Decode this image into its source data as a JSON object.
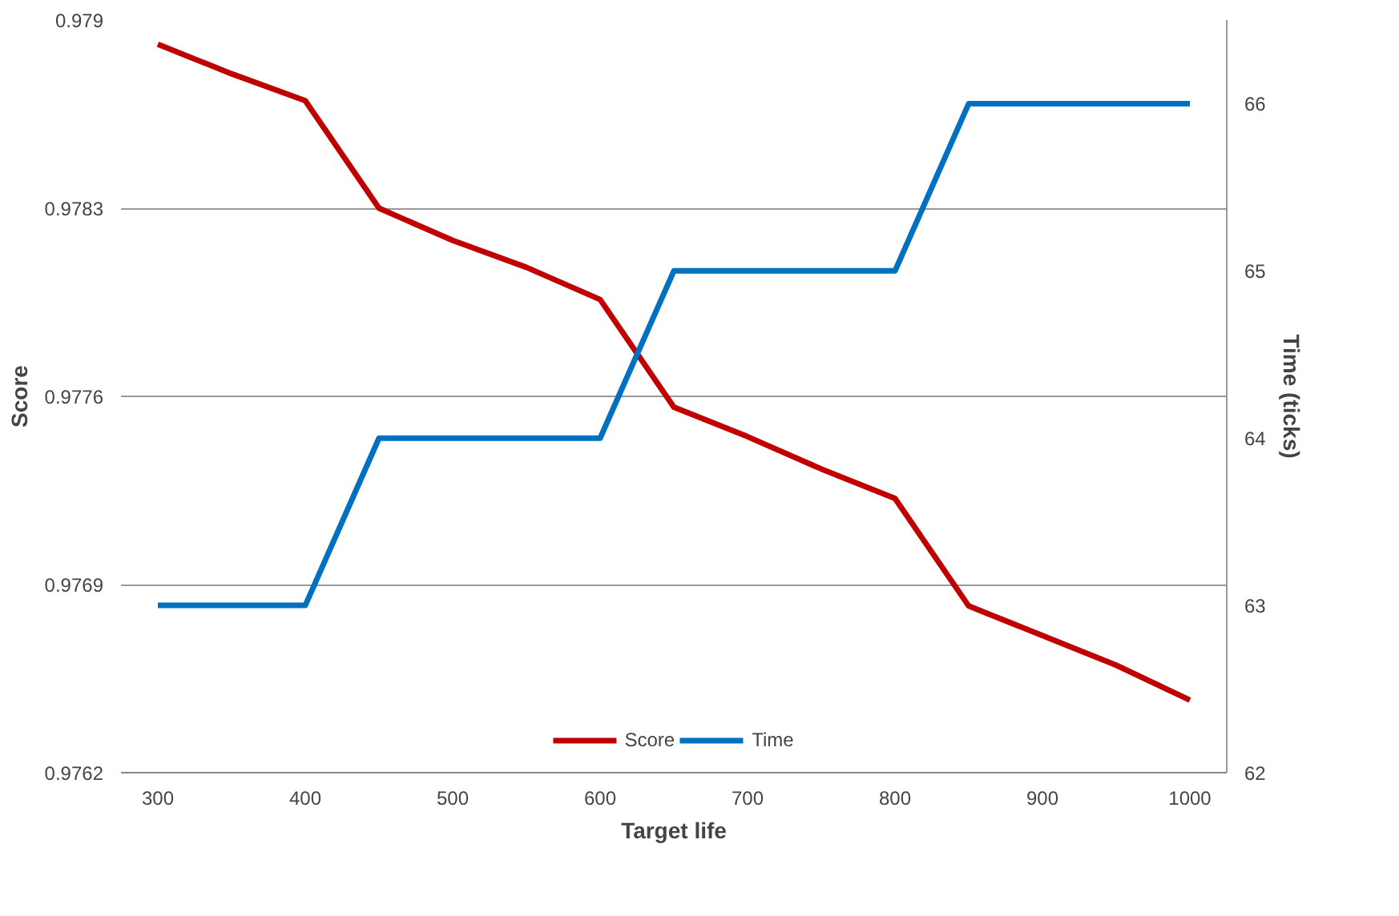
{
  "chart_data": {
    "type": "line",
    "xlabel": "Target life",
    "ylabel": "Score",
    "y2label": "Time (ticks)",
    "x": [
      300,
      350,
      400,
      450,
      500,
      550,
      600,
      650,
      700,
      750,
      800,
      850,
      900,
      950,
      1000
    ],
    "series": [
      {
        "name": "Score",
        "color": "#c00000",
        "values": [
          0.97891,
          0.9788,
          0.9787,
          0.9783,
          0.97818,
          0.97808,
          0.97796,
          0.97756,
          0.97745,
          0.97733,
          0.97722,
          0.97682,
          0.97671,
          0.9766,
          0.97647
        ]
      },
      {
        "name": "Time",
        "color": "#0070c0",
        "axis": "y2",
        "values": [
          63,
          63,
          63,
          64,
          64,
          64,
          64,
          65,
          65,
          65,
          65,
          66,
          66,
          66,
          66
        ]
      }
    ],
    "xlim": [
      275,
      1025
    ],
    "xticks": [
      300,
      400,
      500,
      600,
      700,
      800,
      900,
      1000
    ],
    "ylim": [
      0.9762,
      0.979
    ],
    "yticks": [
      0.9762,
      0.9769,
      0.9776,
      0.9783,
      0.979
    ],
    "y2lim": [
      62,
      66.5
    ],
    "y2ticks": [
      62,
      63,
      64,
      65,
      66
    ],
    "grid": "y",
    "legend": "bottom",
    "marker": "none",
    "line_style": "solid"
  }
}
